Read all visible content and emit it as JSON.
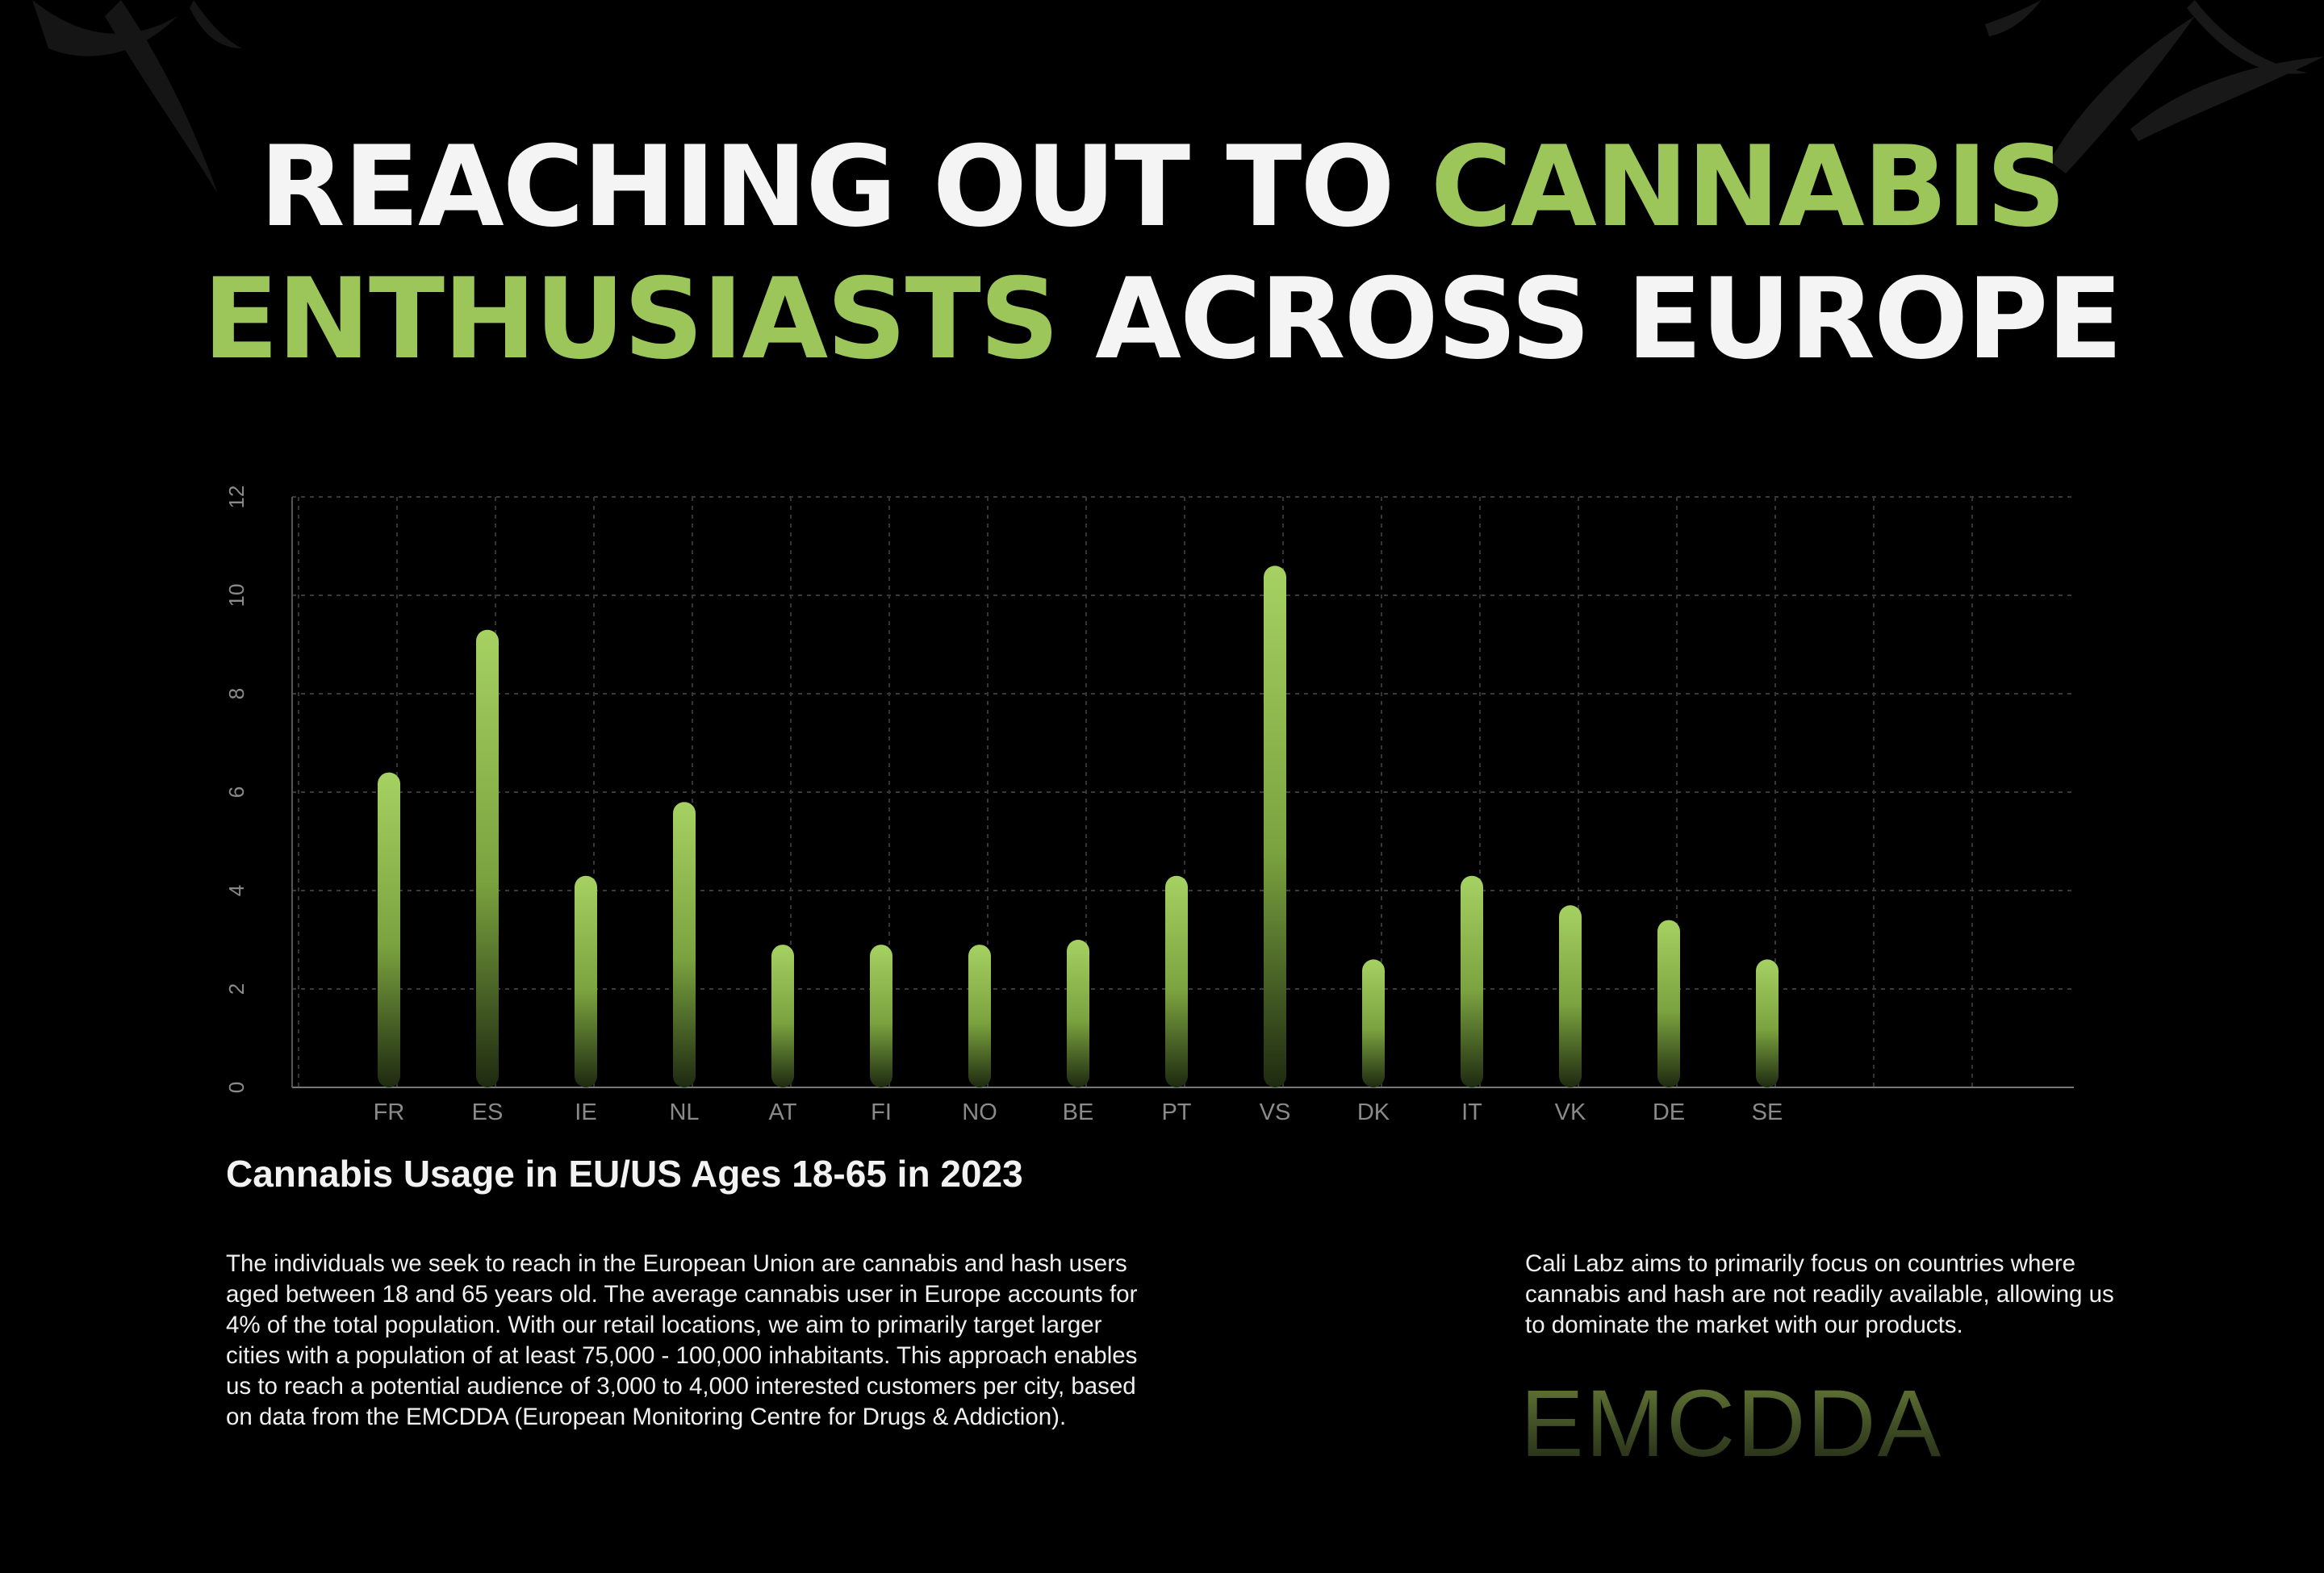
{
  "headline": {
    "line1_white": "REACHING OUT TO",
    "line1_green": "CANNABIS",
    "line2_green": "ENTHUSIASTS",
    "line2_white": "ACROSS EUROPE"
  },
  "colors": {
    "background": "#000000",
    "accent_green": "#9cc659",
    "text_white": "#f4f4f4",
    "grid": "#3a3a3a",
    "axis_text": "#8a8a8a"
  },
  "chart_data": {
    "type": "bar",
    "categories": [
      "FR",
      "ES",
      "IE",
      "NL",
      "AT",
      "FI",
      "NO",
      "BE",
      "PT",
      "VS",
      "DK",
      "IT",
      "VK",
      "DE",
      "SE"
    ],
    "values": [
      6.4,
      9.3,
      4.3,
      5.8,
      2.9,
      2.9,
      2.9,
      3.0,
      4.3,
      10.6,
      2.6,
      4.3,
      3.7,
      3.4,
      2.6
    ],
    "ylim": [
      0,
      12
    ],
    "yticks": [
      "0",
      "2",
      "4",
      "6",
      "8",
      "10",
      "12"
    ],
    "grid": true,
    "title": "Cannabis Usage in EU/US Ages 18-65 in 2023"
  },
  "text": {
    "body_left": "The individuals we seek to reach in the European Union are cannabis and hash users aged between 18 and 65 years old. The average cannabis user in Europe accounts for 4% of the total population. With our retail locations, we aim to primarily target larger cities with a population of at least 75,000 - 100,000 inhabitants. This approach enables us to reach a potential audience of 3,000 to 4,000 interested customers per city, based on data from the EMCDDA (European Monitoring Centre for Drugs & Addiction).",
    "body_right": "Cali Labz aims to primarily focus on countries where cannabis and hash are not readily available, allowing us to dominate the market with our products.",
    "source_logo": "EMCDDA"
  },
  "icons": {
    "top_left": "cannabis-leaf-icon",
    "top_right": "cannabis-leaf-icon"
  }
}
